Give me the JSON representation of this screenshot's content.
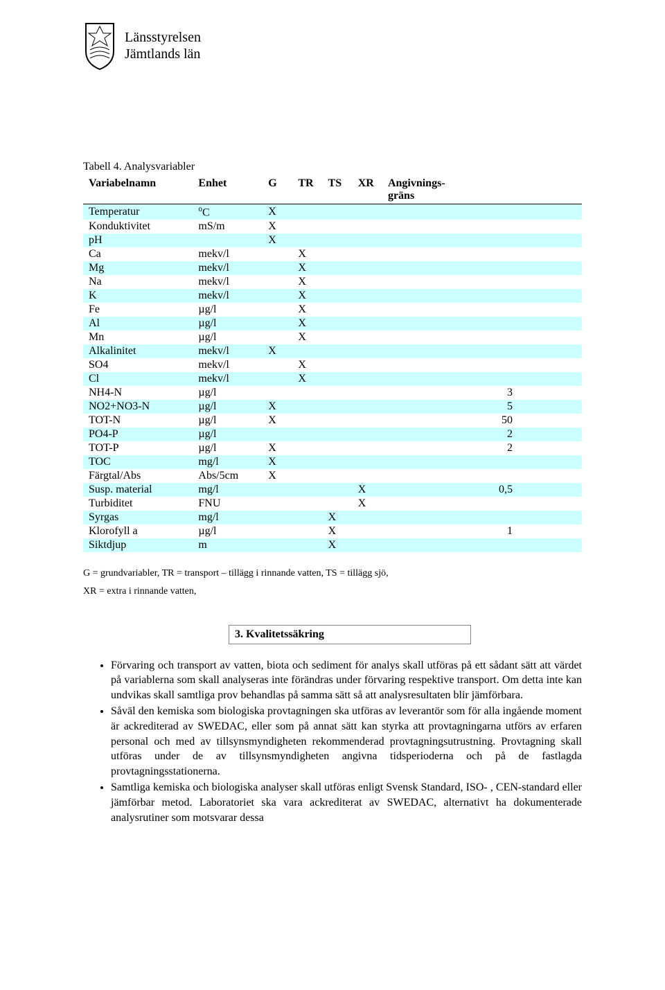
{
  "header": {
    "org_line1": "Länsstyrelsen",
    "org_line2": "Jämtlands län"
  },
  "table": {
    "caption": "Tabell 4. Analysvariabler",
    "columns": [
      "Variabelnamn",
      "Enhet",
      "G",
      "TR",
      "TS",
      "XR",
      "Angivnings- gräns"
    ],
    "alt_row_bg": "#ccffff",
    "rows": [
      {
        "name": "Temperatur",
        "unit_html": "<span class='sup'>o</span>C",
        "g": "X",
        "tr": "",
        "ts": "",
        "xr": "",
        "lim": ""
      },
      {
        "name": "Konduktivitet",
        "unit_html": "mS/m",
        "g": "X",
        "tr": "",
        "ts": "",
        "xr": "",
        "lim": ""
      },
      {
        "name": "pH",
        "unit_html": "",
        "g": "X",
        "tr": "",
        "ts": "",
        "xr": "",
        "lim": ""
      },
      {
        "name": "Ca",
        "unit_html": "mekv/l",
        "g": "",
        "tr": "X",
        "ts": "",
        "xr": "",
        "lim": ""
      },
      {
        "name": "Mg",
        "unit_html": "mekv/l",
        "g": "",
        "tr": "X",
        "ts": "",
        "xr": "",
        "lim": ""
      },
      {
        "name": "Na",
        "unit_html": "mekv/l",
        "g": "",
        "tr": "X",
        "ts": "",
        "xr": "",
        "lim": ""
      },
      {
        "name": "K",
        "unit_html": "mekv/l",
        "g": "",
        "tr": "X",
        "ts": "",
        "xr": "",
        "lim": ""
      },
      {
        "name": "Fe",
        "unit_html": "µg/l",
        "g": "",
        "tr": "X",
        "ts": "",
        "xr": "",
        "lim": ""
      },
      {
        "name": "Al",
        "unit_html": "µg/l",
        "g": "",
        "tr": "X",
        "ts": "",
        "xr": "",
        "lim": ""
      },
      {
        "name": "Mn",
        "unit_html": "µg/l",
        "g": "",
        "tr": "X",
        "ts": "",
        "xr": "",
        "lim": ""
      },
      {
        "name": "Alkalinitet",
        "unit_html": "mekv/l",
        "g": "X",
        "tr": "",
        "ts": "",
        "xr": "",
        "lim": ""
      },
      {
        "name": "SO4",
        "unit_html": "mekv/l",
        "g": "",
        "tr": "X",
        "ts": "",
        "xr": "",
        "lim": ""
      },
      {
        "name": "Cl",
        "unit_html": "mekv/l",
        "g": "",
        "tr": "X",
        "ts": "",
        "xr": "",
        "lim": ""
      },
      {
        "name": "NH4-N",
        "unit_html": "µg/l",
        "g": "",
        "tr": "",
        "ts": "",
        "xr": "",
        "lim": "3"
      },
      {
        "name": "NO2+NO3-N",
        "unit_html": "µg/l",
        "g": "X",
        "tr": "",
        "ts": "",
        "xr": "",
        "lim": "5"
      },
      {
        "name": "TOT-N",
        "unit_html": "µg/l",
        "g": "X",
        "tr": "",
        "ts": "",
        "xr": "",
        "lim": "50"
      },
      {
        "name": "PO4-P",
        "unit_html": "µg/l",
        "g": "",
        "tr": "",
        "ts": "",
        "xr": "",
        "lim": "2"
      },
      {
        "name": "TOT-P",
        "unit_html": "µg/l",
        "g": "X",
        "tr": "",
        "ts": "",
        "xr": "",
        "lim": "2"
      },
      {
        "name": "TOC",
        "unit_html": "mg/l",
        "g": "X",
        "tr": "",
        "ts": "",
        "xr": "",
        "lim": ""
      },
      {
        "name": "Färgtal/Abs",
        "unit_html": "Abs/5cm",
        "g": "X",
        "tr": "",
        "ts": "",
        "xr": "",
        "lim": ""
      },
      {
        "name": "Susp. material",
        "unit_html": "mg/l",
        "g": "",
        "tr": "",
        "ts": "",
        "xr": "X",
        "lim": "0,5"
      },
      {
        "name": "Turbiditet",
        "unit_html": "FNU",
        "g": "",
        "tr": "",
        "ts": "",
        "xr": "X",
        "lim": ""
      },
      {
        "name": "Syrgas",
        "unit_html": "mg/l",
        "g": "",
        "tr": "",
        "ts": "X",
        "xr": "",
        "lim": ""
      },
      {
        "name": "Klorofyll a",
        "unit_html": "µg/l",
        "g": "",
        "tr": "",
        "ts": "X",
        "xr": "",
        "lim": "1"
      },
      {
        "name": "Siktdjup",
        "unit_html": "m",
        "g": "",
        "tr": "",
        "ts": "X",
        "xr": "",
        "lim": ""
      }
    ],
    "col_widths_pct": [
      22,
      14,
      6,
      6,
      6,
      6,
      40
    ]
  },
  "legend": {
    "line1": "G = grundvariabler, TR = transport – tillägg i rinnande vatten, TS = tillägg sjö,",
    "line2": "XR = extra i rinnande vatten,"
  },
  "section_heading": "3. Kvalitetssäkring",
  "bullets": [
    "Förvaring och transport av vatten, biota och sediment för analys skall utföras på ett sådant sätt att värdet på variablerna som skall analyseras inte förändras under förvaring respektive transport. Om detta inte kan undvikas skall samtliga prov behandlas på samma sätt så att analysresultaten blir jämförbara.",
    "Såväl den kemiska som biologiska provtagningen ska utföras av leverantör som för alla ingående moment är ackrediterad av SWEDAC, eller som på annat sätt kan styrka att provtagningarna utförs av erfaren personal och med av tillsynsmyndigheten rekommenderad provtagningsutrustning. Provtagning skall utföras under de av tillsynsmyndigheten angivna tidsperioderna och på de fastlagda provtagningsstationerna.",
    "Samtliga kemiska och biologiska analyser skall utföras enligt Svensk Standard, ISO- , CEN-standard eller jämförbar metod. Laboratoriet ska vara ackrediterat av SWEDAC, alternativt ha dokumenterade analysrutiner som motsvarar dessa"
  ]
}
